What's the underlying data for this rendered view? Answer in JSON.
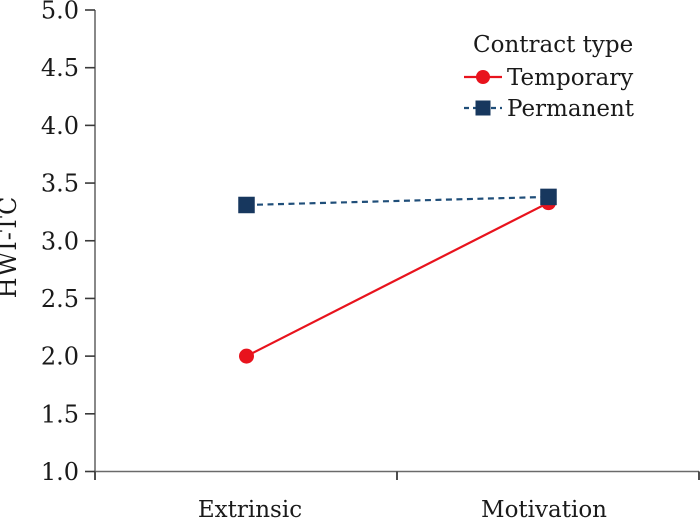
{
  "chart_data": {
    "type": "line",
    "title": "",
    "categories": [
      "Extrinsic",
      "Motivation"
    ],
    "series": [
      {
        "name": "Temporary",
        "values": [
          2.0,
          3.33
        ],
        "color": "#e8131d",
        "line_color": "#e8131d",
        "line_style": "solid",
        "marker": "circle"
      },
      {
        "name": "Permanent",
        "values": [
          3.31,
          3.38
        ],
        "color": "#17375e",
        "line_color": "#1f4e79",
        "line_style": "dashed",
        "marker": "square"
      }
    ],
    "xlabel": "",
    "ylabel": "HWI-TC",
    "ylim": [
      1.0,
      5.0
    ],
    "ytick_step": 0.5,
    "yticks": [
      "5.0",
      "4.5",
      "4.0",
      "3.5",
      "3.0",
      "2.5",
      "2.0",
      "1.5",
      "1.0"
    ],
    "legend": {
      "title": "Contract type",
      "position": "top-right"
    },
    "grid": false,
    "axis_color": "#6a6a6a",
    "tick_color": "#3a3a3a",
    "text_color": "#1a1a1a"
  }
}
